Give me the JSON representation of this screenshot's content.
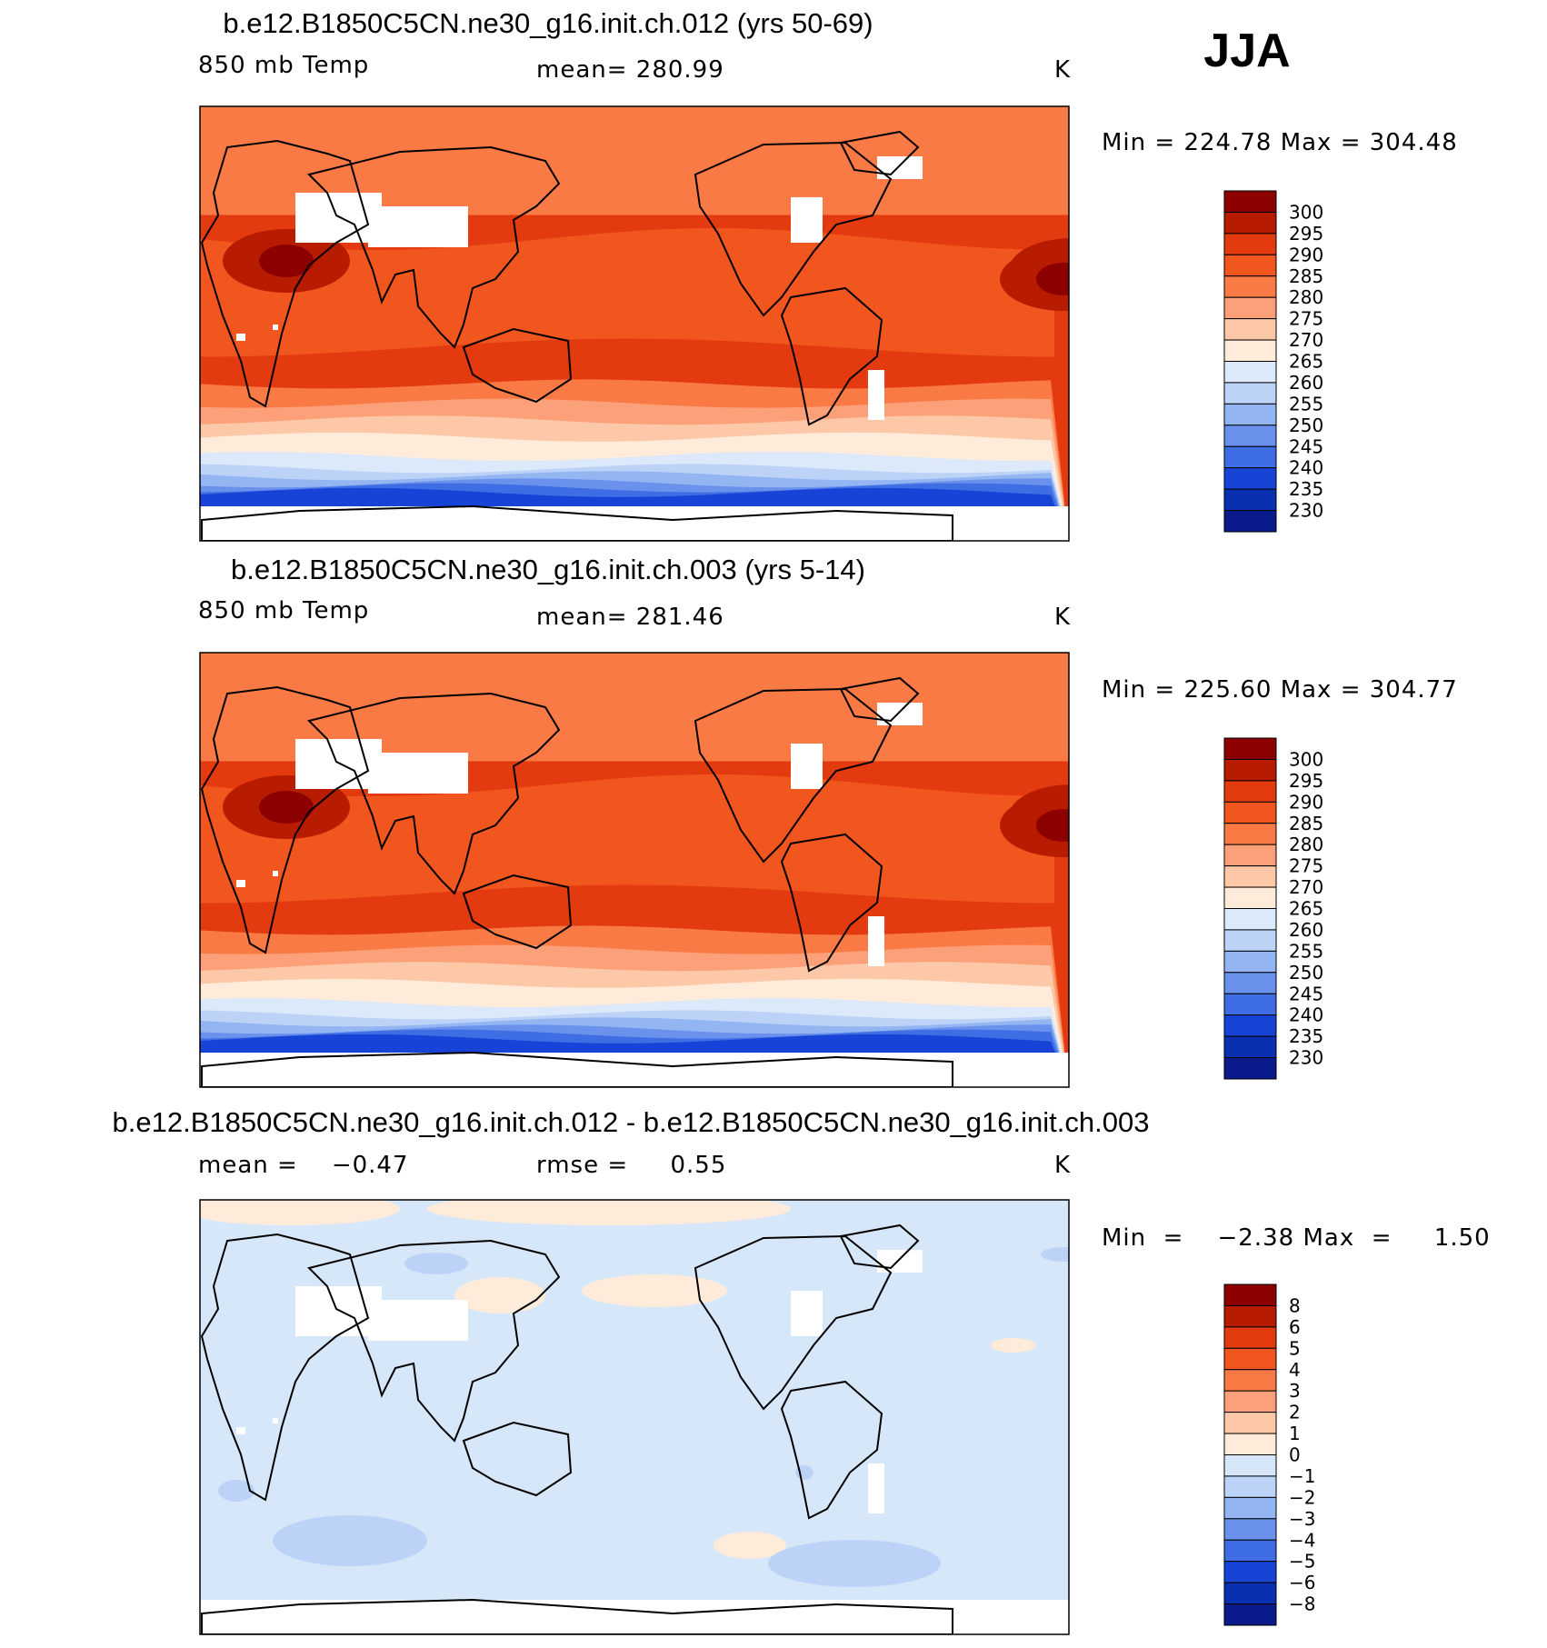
{
  "season": "JJA",
  "chart_data": [
    {
      "type": "heatmap",
      "subtype": "global contour map",
      "title": "b.e12.B1850C5CN.ne30_g16.init.ch.012 (yrs 50-69)",
      "left_label": "850 mb Temp",
      "center_label": "mean=  280.99",
      "mean": 280.99,
      "units": "K",
      "min_max_text": "Min  =  224.78 Max  =  304.48",
      "min": 224.78,
      "max": 304.48,
      "colorbar": {
        "levels": [
          "300",
          "295",
          "290",
          "285",
          "280",
          "275",
          "270",
          "265",
          "260",
          "255",
          "250",
          "245",
          "240",
          "235",
          "230"
        ],
        "colors": [
          "#8c0000",
          "#b81c00",
          "#e33a0f",
          "#f2561f",
          "#fa7a45",
          "#fca07a",
          "#fdc8a8",
          "#feebd9",
          "#dbe9fb",
          "#bcd3f7",
          "#93b5f2",
          "#6a92ec",
          "#3f6de3",
          "#1743d6",
          "#0a2fb0",
          "#0a1a8a"
        ]
      },
      "isolines_lat_deg": [
        75,
        70,
        65,
        57,
        45,
        35,
        20,
        5,
        -10,
        -25,
        -33,
        -40,
        -47,
        -55,
        -60,
        -63,
        -66,
        -68,
        -70
      ]
    },
    {
      "type": "heatmap",
      "subtype": "global contour map",
      "title": "b.e12.B1850C5CN.ne30_g16.init.ch.003 (yrs 5-14)",
      "left_label": "850 mb Temp",
      "center_label": "mean=  281.46",
      "mean": 281.46,
      "units": "K",
      "min_max_text": "Min  =  225.60 Max  =  304.77",
      "min": 225.6,
      "max": 304.77,
      "colorbar": {
        "levels": [
          "300",
          "295",
          "290",
          "285",
          "280",
          "275",
          "270",
          "265",
          "260",
          "255",
          "250",
          "245",
          "240",
          "235",
          "230"
        ],
        "colors": [
          "#8c0000",
          "#b81c00",
          "#e33a0f",
          "#f2561f",
          "#fa7a45",
          "#fca07a",
          "#fdc8a8",
          "#feebd9",
          "#dbe9fb",
          "#bcd3f7",
          "#93b5f2",
          "#6a92ec",
          "#3f6de3",
          "#1743d6",
          "#0a2fb0",
          "#0a1a8a"
        ]
      },
      "isolines_lat_deg": [
        75,
        70,
        65,
        57,
        45,
        35,
        20,
        5,
        -10,
        -25,
        -33,
        -40,
        -47,
        -55,
        -60,
        -63,
        -66,
        -68,
        -70
      ]
    },
    {
      "type": "heatmap",
      "subtype": "global difference map",
      "title": "b.e12.B1850C5CN.ne30_g16.init.ch.012 - b.e12.B1850C5CN.ne30_g16.init.ch.003",
      "left_label": "mean =    −0.47",
      "mean": -0.47,
      "center_label": "rmse =     0.55",
      "rmse": 0.55,
      "units": "K",
      "min_max_text": "Min  =    −2.38 Max  =     1.50",
      "min": -2.38,
      "max": 1.5,
      "colorbar": {
        "levels": [
          "8",
          "6",
          "5",
          "4",
          "3",
          "2",
          "1",
          "0",
          "−1",
          "−2",
          "−3",
          "−4",
          "−5",
          "−6",
          "−8"
        ],
        "colors": [
          "#8c0000",
          "#b81c00",
          "#e33a0f",
          "#f2561f",
          "#fa7a45",
          "#fca07a",
          "#fdc8a8",
          "#feebd9",
          "#d6e7fa",
          "#bcd3f7",
          "#93b5f2",
          "#6a92ec",
          "#3f6de3",
          "#1743d6",
          "#0a2fb0",
          "#0a1a8a"
        ]
      }
    }
  ]
}
